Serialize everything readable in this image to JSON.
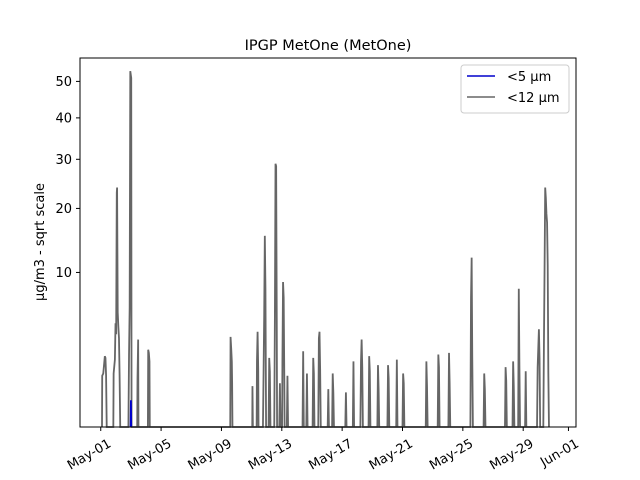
{
  "chart_data": {
    "type": "line",
    "title": "IPGP MetOne (MetOne)",
    "xlabel": "",
    "ylabel": "µg/m3 - sqrt scale",
    "y_scale": "sqrt",
    "x_domain": [
      "2025-04-29T15:00",
      "2025-06-01T12:00"
    ],
    "ylim": [
      0,
      57
    ],
    "yticks": [
      10,
      20,
      30,
      40,
      50
    ],
    "xticks": [
      "May-01",
      "May-05",
      "May-09",
      "May-13",
      "May-17",
      "May-21",
      "May-25",
      "May-29",
      "Jun-01"
    ],
    "xtick_dates": [
      "2025-05-01",
      "2025-05-05",
      "2025-05-09",
      "2025-05-13",
      "2025-05-17",
      "2025-05-21",
      "2025-05-25",
      "2025-05-29",
      "2025-06-01"
    ],
    "legend_position": "top-right",
    "grid": false,
    "series": [
      {
        "name": "<5 µm",
        "color": "#0000cc",
        "points": [
          [
            "2025-05-02T23:30",
            0
          ],
          [
            "2025-05-03T00:00",
            0.3
          ],
          [
            "2025-05-03T00:30",
            0
          ]
        ]
      },
      {
        "name": "<12 µm",
        "color": "#666666",
        "points": [
          [
            "2025-05-01T02:00",
            0
          ],
          [
            "2025-05-01T02:20",
            1.1
          ],
          [
            "2025-05-01T04:00",
            1.2
          ],
          [
            "2025-05-01T05:30",
            1.7
          ],
          [
            "2025-05-01T06:30",
            2.1
          ],
          [
            "2025-05-01T07:30",
            2.0
          ],
          [
            "2025-05-01T08:30",
            1.1
          ],
          [
            "2025-05-01T09:30",
            0
          ],
          [
            "2025-05-01T20:00",
            0
          ],
          [
            "2025-05-01T20:30",
            1.2
          ],
          [
            "2025-05-01T22:30",
            1.9
          ],
          [
            "2025-05-01T23:30",
            4.5
          ],
          [
            "2025-05-02T00:30",
            3.6
          ],
          [
            "2025-05-02T01:30",
            23.0
          ],
          [
            "2025-05-02T02:00",
            24.0
          ],
          [
            "2025-05-02T03:00",
            5.5
          ],
          [
            "2025-05-02T04:00",
            4.2
          ],
          [
            "2025-05-02T05:00",
            3.3
          ],
          [
            "2025-05-02T06:00",
            1.1
          ],
          [
            "2025-05-02T07:00",
            0
          ],
          [
            "2025-05-02T20:00",
            0
          ],
          [
            "2025-05-02T21:00",
            2.2
          ],
          [
            "2025-05-02T22:00",
            6.0
          ],
          [
            "2025-05-02T23:00",
            53.0
          ],
          [
            "2025-05-03T00:30",
            51.0
          ],
          [
            "2025-05-03T01:00",
            0
          ],
          [
            "2025-05-03T10:00",
            0
          ],
          [
            "2025-05-03T10:30",
            1.0
          ],
          [
            "2025-05-03T11:30",
            3.2
          ],
          [
            "2025-05-03T12:00",
            0
          ],
          [
            "2025-05-04T03:00",
            0
          ],
          [
            "2025-05-04T03:30",
            2.5
          ],
          [
            "2025-05-04T04:30",
            2.3
          ],
          [
            "2025-05-04T05:30",
            1.8
          ],
          [
            "2025-05-04T06:00",
            0
          ],
          [
            "2025-05-09T14:00",
            0
          ],
          [
            "2025-05-09T14:30",
            3.4
          ],
          [
            "2025-05-09T15:30",
            2.6
          ],
          [
            "2025-05-09T16:30",
            1.8
          ],
          [
            "2025-05-09T17:00",
            0.8
          ],
          [
            "2025-05-09T17:30",
            0
          ],
          [
            "2025-05-11T01:00",
            0
          ],
          [
            "2025-05-11T01:20",
            0.7
          ],
          [
            "2025-05-11T02:00",
            0
          ],
          [
            "2025-05-11T08:00",
            0
          ],
          [
            "2025-05-11T08:30",
            1.8
          ],
          [
            "2025-05-11T09:30",
            3.8
          ],
          [
            "2025-05-11T10:30",
            1.4
          ],
          [
            "2025-05-11T11:00",
            0
          ],
          [
            "2025-05-11T18:00",
            0
          ],
          [
            "2025-05-11T19:00",
            1.2
          ],
          [
            "2025-05-11T20:00",
            5.2
          ],
          [
            "2025-05-11T21:00",
            15.3
          ],
          [
            "2025-05-11T22:00",
            8.0
          ],
          [
            "2025-05-11T23:00",
            0
          ],
          [
            "2025-05-12T03:00",
            0
          ],
          [
            "2025-05-12T04:00",
            2.0
          ],
          [
            "2025-05-12T05:00",
            1.3
          ],
          [
            "2025-05-12T06:00",
            0
          ],
          [
            "2025-05-12T12:00",
            0
          ],
          [
            "2025-05-12T13:00",
            4.8
          ],
          [
            "2025-05-12T14:00",
            29.0
          ],
          [
            "2025-05-12T15:00",
            28.5
          ],
          [
            "2025-05-12T16:00",
            4.6
          ],
          [
            "2025-05-12T16:30",
            0
          ],
          [
            "2025-05-12T20:00",
            0
          ],
          [
            "2025-05-12T21:00",
            0.8
          ],
          [
            "2025-05-12T22:00",
            0
          ],
          [
            "2025-05-13T00:30",
            0
          ],
          [
            "2025-05-13T01:00",
            1.8
          ],
          [
            "2025-05-13T02:00",
            8.8
          ],
          [
            "2025-05-13T03:00",
            7.0
          ],
          [
            "2025-05-13T04:00",
            1.0
          ],
          [
            "2025-05-13T04:30",
            0
          ],
          [
            "2025-05-13T08:00",
            0
          ],
          [
            "2025-05-13T09:00",
            1.1
          ],
          [
            "2025-05-13T10:00",
            0
          ],
          [
            "2025-05-14T09:00",
            0
          ],
          [
            "2025-05-14T10:00",
            2.4
          ],
          [
            "2025-05-14T11:00",
            0
          ],
          [
            "2025-05-14T15:00",
            0
          ],
          [
            "2025-05-14T16:00",
            1.2
          ],
          [
            "2025-05-14T17:00",
            0
          ],
          [
            "2025-05-15T01:00",
            0
          ],
          [
            "2025-05-15T02:00",
            2.0
          ],
          [
            "2025-05-15T03:00",
            1.2
          ],
          [
            "2025-05-15T04:00",
            0
          ],
          [
            "2025-05-15T10:00",
            0
          ],
          [
            "2025-05-15T11:00",
            3.3
          ],
          [
            "2025-05-15T12:00",
            3.8
          ],
          [
            "2025-05-15T13:00",
            1.4
          ],
          [
            "2025-05-15T14:00",
            0
          ],
          [
            "2025-05-16T01:00",
            0
          ],
          [
            "2025-05-16T02:00",
            0.6
          ],
          [
            "2025-05-16T03:00",
            0
          ],
          [
            "2025-05-16T08:00",
            0
          ],
          [
            "2025-05-16T09:00",
            1.2
          ],
          [
            "2025-05-16T10:00",
            0.5
          ],
          [
            "2025-05-16T11:00",
            0
          ],
          [
            "2025-05-17T05:00",
            0
          ],
          [
            "2025-05-17T06:00",
            0.5
          ],
          [
            "2025-05-17T07:00",
            0
          ],
          [
            "2025-05-17T17:00",
            0
          ],
          [
            "2025-05-17T18:00",
            1.8
          ],
          [
            "2025-05-17T19:00",
            0
          ],
          [
            "2025-05-18T05:00",
            0
          ],
          [
            "2025-05-18T06:00",
            1.8
          ],
          [
            "2025-05-18T07:00",
            3.2
          ],
          [
            "2025-05-18T08:00",
            1.5
          ],
          [
            "2025-05-18T09:00",
            0
          ],
          [
            "2025-05-18T18:00",
            0
          ],
          [
            "2025-05-18T19:00",
            2.1
          ],
          [
            "2025-05-18T20:00",
            1.3
          ],
          [
            "2025-05-18T21:00",
            0
          ],
          [
            "2025-05-19T08:00",
            0
          ],
          [
            "2025-05-19T09:00",
            1.6
          ],
          [
            "2025-05-19T10:00",
            0.6
          ],
          [
            "2025-05-19T11:00",
            0
          ],
          [
            "2025-05-20T00:00",
            0
          ],
          [
            "2025-05-20T01:00",
            1.6
          ],
          [
            "2025-05-20T02:00",
            1.0
          ],
          [
            "2025-05-20T03:00",
            0
          ],
          [
            "2025-05-20T14:00",
            0
          ],
          [
            "2025-05-20T15:00",
            1.9
          ],
          [
            "2025-05-20T16:00",
            0
          ],
          [
            "2025-05-21T00:00",
            0
          ],
          [
            "2025-05-21T01:00",
            1.2
          ],
          [
            "2025-05-21T02:00",
            0.8
          ],
          [
            "2025-05-21T03:00",
            0
          ],
          [
            "2025-05-22T13:00",
            0
          ],
          [
            "2025-05-22T14:00",
            1.8
          ],
          [
            "2025-05-22T15:00",
            0.7
          ],
          [
            "2025-05-22T16:00",
            0
          ],
          [
            "2025-05-23T08:00",
            0
          ],
          [
            "2025-05-23T09:00",
            2.2
          ],
          [
            "2025-05-23T10:00",
            1.5
          ],
          [
            "2025-05-23T11:00",
            0
          ],
          [
            "2025-05-24T01:00",
            0
          ],
          [
            "2025-05-24T02:00",
            2.3
          ],
          [
            "2025-05-24T03:00",
            0.8
          ],
          [
            "2025-05-24T04:00",
            0
          ],
          [
            "2025-05-25T12:00",
            0
          ],
          [
            "2025-05-25T13:00",
            7.0
          ],
          [
            "2025-05-25T14:00",
            12.0
          ],
          [
            "2025-05-25T15:00",
            2.0
          ],
          [
            "2025-05-25T16:00",
            0
          ],
          [
            "2025-05-26T09:00",
            0
          ],
          [
            "2025-05-26T10:00",
            1.2
          ],
          [
            "2025-05-26T11:00",
            0.6
          ],
          [
            "2025-05-26T12:00",
            0
          ],
          [
            "2025-05-27T19:00",
            0
          ],
          [
            "2025-05-27T20:00",
            1.5
          ],
          [
            "2025-05-27T21:00",
            0.9
          ],
          [
            "2025-05-27T22:00",
            0
          ],
          [
            "2025-05-28T07:00",
            0
          ],
          [
            "2025-05-28T08:00",
            1.8
          ],
          [
            "2025-05-28T09:00",
            0.7
          ],
          [
            "2025-05-28T10:00",
            0
          ],
          [
            "2025-05-28T16:00",
            0
          ],
          [
            "2025-05-28T17:00",
            8.0
          ],
          [
            "2025-05-28T18:00",
            1.5
          ],
          [
            "2025-05-28T19:00",
            0
          ],
          [
            "2025-05-29T03:00",
            0
          ],
          [
            "2025-05-29T04:00",
            1.3
          ],
          [
            "2025-05-29T05:00",
            0
          ],
          [
            "2025-05-29T22:00",
            0
          ],
          [
            "2025-05-29T23:00",
            1.5
          ],
          [
            "2025-05-30T00:00",
            2.6
          ],
          [
            "2025-05-30T01:00",
            4.0
          ],
          [
            "2025-05-30T02:00",
            2.0
          ],
          [
            "2025-05-30T03:00",
            0
          ],
          [
            "2025-05-30T08:00",
            0
          ],
          [
            "2025-05-30T09:00",
            3.0
          ],
          [
            "2025-05-30T10:00",
            10.5
          ],
          [
            "2025-05-30T11:00",
            24.0
          ],
          [
            "2025-05-30T12:00",
            22.0
          ],
          [
            "2025-05-30T13:00",
            19.0
          ],
          [
            "2025-05-30T14:00",
            17.5
          ],
          [
            "2025-05-30T15:00",
            11.0
          ],
          [
            "2025-05-30T16:00",
            1.2
          ],
          [
            "2025-05-30T17:00",
            0
          ]
        ]
      }
    ]
  }
}
